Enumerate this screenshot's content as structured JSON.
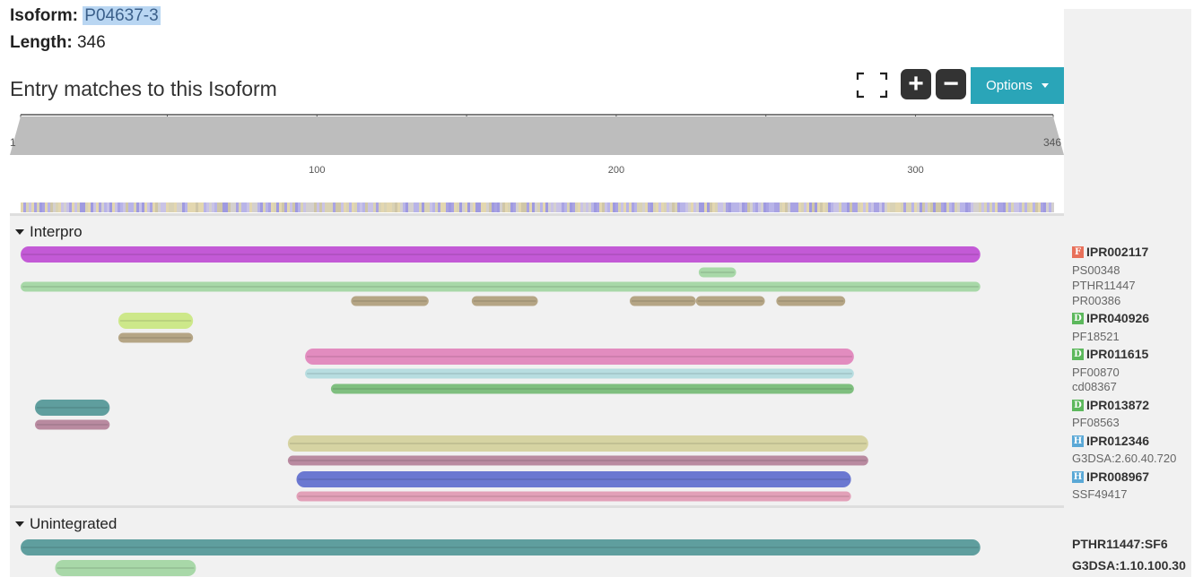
{
  "isoform": {
    "label": "Isoform:",
    "value": "P04637-3"
  },
  "length": {
    "label": "Length:",
    "value": "346"
  },
  "title": "Entry matches to this Isoform",
  "controls": {
    "options_label": "Options",
    "zoom_in_symbol": "+",
    "zoom_out_symbol": "−"
  },
  "ruler": {
    "start": "1",
    "end": "346",
    "top_ticks": [
      "50",
      "100",
      "150",
      "200",
      "250",
      "300"
    ],
    "bottom_ticks": [
      "100",
      "200",
      "300"
    ]
  },
  "sections": {
    "interpro": "Interpro",
    "unintegrated": "Unintegrated"
  },
  "labels": [
    {
      "text": "IPR002117",
      "kind": "entry",
      "badge": "F",
      "badge_color": "#e8705a"
    },
    {
      "text": "PS00348",
      "kind": "member"
    },
    {
      "text": "PTHR11447",
      "kind": "member"
    },
    {
      "text": "PR00386",
      "kind": "member"
    },
    {
      "text": "IPR040926",
      "kind": "entry",
      "badge": "D",
      "badge_color": "#5cb85c"
    },
    {
      "text": "PF18521",
      "kind": "member"
    },
    {
      "text": "IPR011615",
      "kind": "entry",
      "badge": "D",
      "badge_color": "#5cb85c"
    },
    {
      "text": "PF00870",
      "kind": "member"
    },
    {
      "text": "cd08367",
      "kind": "member"
    },
    {
      "text": "IPR013872",
      "kind": "entry",
      "badge": "D",
      "badge_color": "#5cb85c"
    },
    {
      "text": "PF08563",
      "kind": "member"
    },
    {
      "text": "IPR012346",
      "kind": "entry",
      "badge": "H",
      "badge_color": "#5aa8d6"
    },
    {
      "text": "G3DSA:2.60.40.720",
      "kind": "member"
    },
    {
      "text": "IPR008967",
      "kind": "entry",
      "badge": "H",
      "badge_color": "#5aa8d6"
    },
    {
      "text": "SSF49417",
      "kind": "member"
    },
    {
      "text": "PTHR11447:SF6",
      "kind": "unint"
    },
    {
      "text": "G3DSA:1.10.100.30",
      "kind": "unint"
    }
  ],
  "colors": {
    "accent": "#2aa5b8",
    "purple": "#c35ad6",
    "light_green": "#a8d8a8",
    "tan": "#b5a585",
    "lime": "#cde88a",
    "pink": "#e28cbf",
    "light_blue": "#b7dde0",
    "green": "#7fbf7f",
    "teal": "#5f9e9e",
    "mauve": "#b98aa0",
    "khaki": "#d6d3a2",
    "indigo": "#6b78d1",
    "rose": "#e2a0b8"
  },
  "tracks": [
    {
      "id": "IPR002117",
      "color": "purple",
      "start": 1,
      "end": 335,
      "thick": true
    },
    {
      "id": "PS00348",
      "color": "light_green",
      "start": 237,
      "end": 250,
      "thick": false
    },
    {
      "id": "PTHR11447",
      "color": "light_green",
      "start": 1,
      "end": 335,
      "thick": false
    },
    {
      "id": "PR00386-a",
      "color": "tan",
      "start": 116,
      "end": 143,
      "thick": false
    },
    {
      "id": "PR00386-b",
      "color": "tan",
      "start": 158,
      "end": 181,
      "thick": false
    },
    {
      "id": "PR00386-c",
      "color": "tan",
      "start": 213,
      "end": 236,
      "thick": false
    },
    {
      "id": "PR00386-d",
      "color": "tan",
      "start": 236,
      "end": 260,
      "thick": false
    },
    {
      "id": "PR00386-e",
      "color": "tan",
      "start": 264,
      "end": 288,
      "thick": false
    },
    {
      "id": "IPR040926",
      "color": "lime",
      "start": 35,
      "end": 61,
      "thick": true
    },
    {
      "id": "PF18521",
      "color": "tan",
      "start": 35,
      "end": 61,
      "thick": false
    },
    {
      "id": "IPR011615",
      "color": "pink",
      "start": 100,
      "end": 291,
      "thick": true
    },
    {
      "id": "PF00870",
      "color": "light_blue",
      "start": 100,
      "end": 291,
      "thick": false
    },
    {
      "id": "cd08367",
      "color": "green",
      "start": 109,
      "end": 291,
      "thick": false
    },
    {
      "id": "IPR013872",
      "color": "teal",
      "start": 6,
      "end": 32,
      "thick": true
    },
    {
      "id": "PF08563",
      "color": "mauve",
      "start": 6,
      "end": 32,
      "thick": false
    },
    {
      "id": "IPR012346",
      "color": "khaki",
      "start": 94,
      "end": 296,
      "thick": true
    },
    {
      "id": "G3DSA:2.60.40.720",
      "color": "mauve",
      "start": 94,
      "end": 296,
      "thick": false
    },
    {
      "id": "IPR008967",
      "color": "indigo",
      "start": 97,
      "end": 290,
      "thick": true
    },
    {
      "id": "SSF49417",
      "color": "rose",
      "start": 97,
      "end": 290,
      "thick": false
    },
    {
      "id": "PTHR11447:SF6",
      "color": "teal",
      "start": 1,
      "end": 335,
      "thick": true
    },
    {
      "id": "G3DSA:1.10.100.30",
      "color": "light_green",
      "start": 13,
      "end": 62,
      "thick": true
    }
  ]
}
